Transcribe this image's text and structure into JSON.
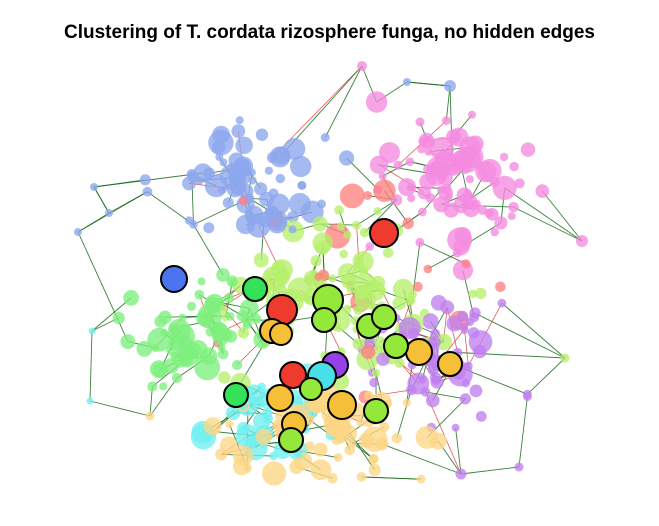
{
  "figure": {
    "title": "Clustering of T. cordata rizosphere funga, no hidden edges"
  },
  "chart_data": {
    "type": "network",
    "title": "Clustering of T. cordata rizosphere funga, no hidden edges",
    "node_count_background": 520,
    "edge_colors": {
      "dark": "#1a6b1a",
      "red": "#e02222"
    },
    "edge_counts": {
      "dark": 230,
      "red": 55
    },
    "clusters": [
      {
        "color": "#8da6ee",
        "region": "upper-left"
      },
      {
        "color": "#f58ae0",
        "region": "upper-right"
      },
      {
        "color": "#b6ef6b",
        "region": "center"
      },
      {
        "color": "#7df07d",
        "region": "center-left"
      },
      {
        "color": "#6ff0f0",
        "region": "lower-center"
      },
      {
        "color": "#fcd685",
        "region": "bottom"
      },
      {
        "color": "#c07ff0",
        "region": "center-right"
      },
      {
        "color": "#ff8080",
        "region": "scattered"
      }
    ],
    "highlighted_nodes": [
      {
        "color": "#ef3a2e",
        "size": "large"
      },
      {
        "color": "#4a74f0",
        "size": "medium"
      },
      {
        "color": "#34e25a",
        "size": "medium"
      },
      {
        "color": "#ef3a2e",
        "size": "large"
      },
      {
        "color": "#93e83a",
        "size": "large"
      },
      {
        "color": "#f5c037",
        "size": "medium"
      },
      {
        "color": "#f5c037",
        "size": "medium"
      },
      {
        "color": "#93e83a",
        "size": "medium"
      },
      {
        "color": "#93e83a",
        "size": "medium"
      },
      {
        "color": "#93e83a",
        "size": "medium"
      },
      {
        "color": "#f5c037",
        "size": "medium"
      },
      {
        "color": "#f5c037",
        "size": "medium"
      },
      {
        "color": "#9640e8",
        "size": "medium"
      },
      {
        "color": "#ef3a2e",
        "size": "medium"
      },
      {
        "color": "#47dfe8",
        "size": "medium"
      },
      {
        "color": "#93e83a",
        "size": "medium"
      },
      {
        "color": "#34e25a",
        "size": "medium"
      },
      {
        "color": "#f5c037",
        "size": "medium"
      },
      {
        "color": "#f5c037",
        "size": "medium"
      },
      {
        "color": "#93e83a",
        "size": "medium"
      },
      {
        "color": "#f5c037",
        "size": "medium"
      },
      {
        "color": "#93e83a",
        "size": "medium"
      },
      {
        "color": "#93e83a",
        "size": "medium"
      }
    ]
  }
}
